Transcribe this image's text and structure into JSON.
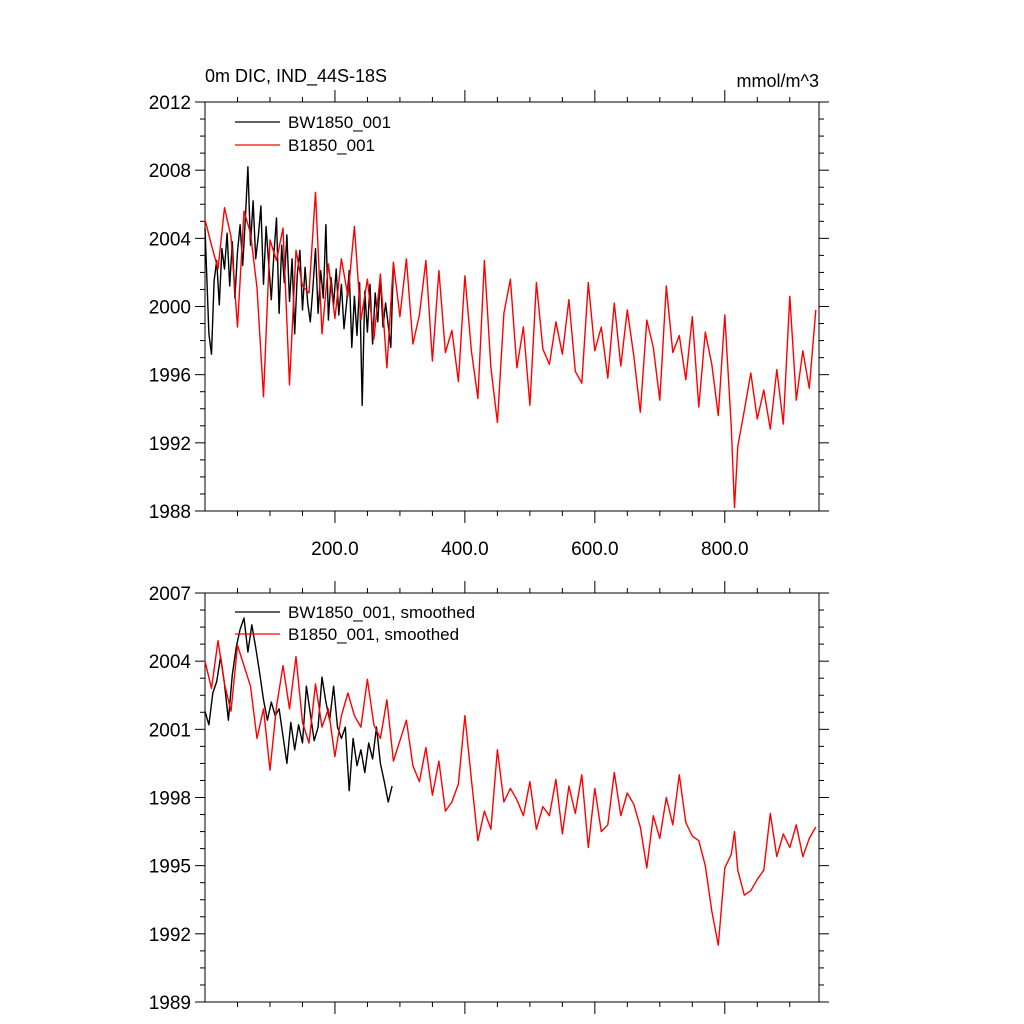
{
  "chart_data": [
    {
      "type": "line",
      "title": "0m DIC, IND_44S-18S",
      "units": "mmol/m^3",
      "xlim": [
        0,
        945
      ],
      "ylim": [
        1988,
        2012
      ],
      "xticks": [
        200,
        400,
        600,
        800
      ],
      "xtick_labels": [
        "200.0",
        "400.0",
        "600.0",
        "800.0"
      ],
      "yticks": [
        1988,
        1992,
        1996,
        2000,
        2004,
        2008,
        2012
      ],
      "ytick_labels": [
        "1988",
        "1992",
        "1996",
        "2000",
        "2004",
        "2008",
        "2012"
      ],
      "legend_position": "top-left",
      "series": [
        {
          "name": "BW1850_001",
          "color": "#000000",
          "x": [
            0,
            6,
            10,
            14,
            18,
            22,
            26,
            30,
            34,
            38,
            42,
            46,
            50,
            54,
            58,
            62,
            66,
            70,
            74,
            78,
            82,
            86,
            90,
            94,
            98,
            102,
            106,
            110,
            114,
            118,
            122,
            126,
            130,
            134,
            138,
            142,
            146,
            150,
            154,
            158,
            162,
            166,
            170,
            174,
            178,
            182,
            186,
            190,
            194,
            198,
            202,
            206,
            210,
            214,
            218,
            222,
            226,
            230,
            234,
            238,
            242,
            246,
            250,
            254,
            258,
            262,
            266,
            270,
            274,
            278,
            282,
            286,
            290
          ],
          "values": [
            2004.6,
            1998.4,
            1997.2,
            2001.5,
            2002.7,
            2000.1,
            2003.4,
            2002.2,
            2004.3,
            2001.2,
            2003.8,
            2000.5,
            2003.2,
            2004.8,
            2002.4,
            2005.1,
            2008.2,
            2003.6,
            2006.2,
            2002.8,
            2004.1,
            2005.9,
            2001.3,
            2004.7,
            2002.5,
            2000.4,
            2003.1,
            2005.2,
            1999.6,
            2003.6,
            2001.4,
            2004.2,
            2000.3,
            2002.8,
            1998.4,
            2001.9,
            2003.3,
            1999.8,
            2002.3,
            2000.2,
            1999.1,
            2001.1,
            2003.4,
            1999.6,
            2002.1,
            2000.5,
            2004.8,
            1999.2,
            2001.7,
            2000.1,
            2002.2,
            1999.5,
            2001.3,
            1998.7,
            2000.2,
            2002.1,
            1997.6,
            2000.6,
            1998.3,
            2001.4,
            1994.2,
            2000.9,
            1998.5,
            2001.3,
            1997.8,
            2000.8,
            1999.1,
            2001.7,
            1998.8,
            2000.2,
            1998.9,
            1997.6,
            2002.4
          ]
        },
        {
          "name": "B1850_001",
          "color": "#ff0000",
          "x": [
            0,
            10,
            20,
            30,
            40,
            50,
            60,
            70,
            80,
            90,
            100,
            110,
            120,
            130,
            140,
            150,
            160,
            170,
            180,
            190,
            200,
            210,
            220,
            230,
            240,
            250,
            260,
            270,
            280,
            290,
            300,
            310,
            320,
            330,
            340,
            350,
            360,
            370,
            380,
            390,
            400,
            410,
            420,
            430,
            440,
            450,
            460,
            470,
            480,
            490,
            500,
            510,
            520,
            530,
            540,
            550,
            560,
            570,
            580,
            590,
            600,
            610,
            620,
            630,
            640,
            650,
            660,
            670,
            680,
            690,
            700,
            710,
            720,
            730,
            740,
            750,
            760,
            770,
            780,
            790,
            800,
            810,
            815,
            820,
            830,
            840,
            850,
            860,
            870,
            880,
            890,
            900,
            910,
            920,
            930,
            940
          ],
          "values": [
            2005.1,
            2003.6,
            2002.2,
            2005.8,
            2004.1,
            1998.8,
            2005.6,
            2004.3,
            2001.1,
            1994.7,
            2003.9,
            2002.7,
            2004.6,
            1995.4,
            2003.3,
            2001.2,
            2000.8,
            2006.7,
            1998.4,
            2002.5,
            1999.3,
            2002.8,
            2000.6,
            2004.7,
            1999.2,
            2001.6,
            1998.1,
            2001.9,
            1996.4,
            2002.6,
            1999.4,
            2002.8,
            1997.8,
            1999.5,
            2002.7,
            1996.8,
            2002.1,
            1997.3,
            1998.6,
            1995.6,
            2001.8,
            1997.4,
            1994.6,
            2002.7,
            1996.4,
            1993.2,
            1999.6,
            2001.6,
            1996.4,
            1998.8,
            1994.2,
            2001.4,
            1997.5,
            1996.6,
            1999.1,
            1997.2,
            2000.4,
            1996.2,
            1995.5,
            2001.4,
            1997.4,
            1998.8,
            1995.8,
            2000.2,
            1996.5,
            1999.8,
            1997.1,
            1993.8,
            1999.2,
            1997.6,
            1994.5,
            2001.2,
            1997.3,
            1998.3,
            1995.7,
            1999.4,
            1994.1,
            1998.5,
            1996.6,
            1993.6,
            1999.5,
            1992.9,
            1988.2,
            1991.8,
            1993.9,
            1996.1,
            1993.4,
            1995.1,
            1992.8,
            1996.3,
            1993.1,
            2000.6,
            1994.5,
            1997.4,
            1995.2,
            1999.8
          ]
        }
      ]
    },
    {
      "type": "line",
      "title": "",
      "xlim": [
        0,
        945
      ],
      "ylim": [
        1989,
        2007
      ],
      "xticks": [
        200,
        400,
        600,
        800
      ],
      "yticks": [
        1989,
        1992,
        1995,
        1998,
        2001,
        2004,
        2007
      ],
      "ytick_labels": [
        "1989",
        "1992",
        "1995",
        "1998",
        "2001",
        "2004",
        "2007"
      ],
      "legend_position": "top-left",
      "series": [
        {
          "name": "BW1850_001, smoothed",
          "color": "#000000",
          "x": [
            0,
            6,
            12,
            18,
            24,
            30,
            36,
            42,
            48,
            54,
            60,
            66,
            72,
            78,
            84,
            90,
            96,
            102,
            108,
            114,
            120,
            126,
            132,
            138,
            144,
            150,
            156,
            162,
            168,
            174,
            180,
            186,
            192,
            198,
            204,
            210,
            216,
            222,
            228,
            234,
            240,
            246,
            252,
            258,
            264,
            270,
            276,
            282,
            288
          ],
          "values": [
            2001.8,
            2001.2,
            2002.6,
            2003.1,
            2004.2,
            2003.0,
            2001.4,
            2003.4,
            2004.6,
            2005.4,
            2005.9,
            2004.4,
            2005.6,
            2004.6,
            2003.5,
            2002.3,
            2001.4,
            2002.2,
            2001.6,
            2001.9,
            2000.7,
            1999.5,
            2001.3,
            2000.1,
            2001.2,
            2000.4,
            2002.9,
            2001.7,
            2000.5,
            2001.1,
            2003.3,
            2002.2,
            2001.4,
            2002.9,
            2001.1,
            2000.6,
            2001.1,
            1998.3,
            2000.6,
            1999.4,
            2000.1,
            1999.1,
            2000.4,
            1999.7,
            2001.1,
            1999.5,
            1998.7,
            1997.8,
            1998.5
          ]
        },
        {
          "name": "B1850_001, smoothed",
          "color": "#ff0000",
          "x": [
            0,
            10,
            20,
            30,
            40,
            50,
            60,
            70,
            80,
            90,
            100,
            110,
            120,
            130,
            140,
            150,
            160,
            170,
            180,
            190,
            200,
            210,
            220,
            230,
            240,
            250,
            260,
            270,
            280,
            290,
            300,
            310,
            320,
            330,
            340,
            350,
            360,
            370,
            380,
            390,
            400,
            410,
            420,
            430,
            440,
            450,
            460,
            470,
            480,
            490,
            500,
            510,
            520,
            530,
            540,
            550,
            560,
            570,
            580,
            590,
            600,
            610,
            620,
            630,
            640,
            650,
            660,
            670,
            680,
            690,
            700,
            710,
            720,
            730,
            740,
            750,
            760,
            770,
            780,
            790,
            800,
            810,
            815,
            820,
            830,
            840,
            850,
            860,
            870,
            880,
            890,
            900,
            910,
            920,
            930,
            940
          ],
          "values": [
            2004.0,
            2002.8,
            2004.9,
            2003.0,
            2001.8,
            2004.7,
            2003.8,
            2002.9,
            2000.6,
            2001.9,
            1999.2,
            2002.0,
            2003.8,
            2001.9,
            2004.2,
            2001.3,
            2000.4,
            2003.0,
            2001.1,
            2001.9,
            1999.8,
            2001.6,
            2002.6,
            2001.6,
            2001.1,
            2003.2,
            2001.2,
            2000.6,
            2002.3,
            1999.6,
            2000.5,
            2001.4,
            1999.4,
            1998.7,
            2000.2,
            1998.1,
            1999.6,
            1997.4,
            1997.8,
            1998.6,
            2001.6,
            1998.8,
            1996.1,
            1997.4,
            1996.6,
            2000.1,
            1997.8,
            1998.4,
            1997.9,
            1997.2,
            1998.7,
            1996.6,
            1997.6,
            1997.2,
            1998.8,
            1996.4,
            1998.5,
            1997.3,
            1999.0,
            1995.8,
            1998.4,
            1996.5,
            1996.8,
            1999.1,
            1997.2,
            1998.2,
            1997.7,
            1996.7,
            1994.9,
            1997.2,
            1996.2,
            1998.0,
            1996.8,
            1999.0,
            1996.9,
            1996.3,
            1996.1,
            1995.0,
            1993.0,
            1991.5,
            1994.9,
            1995.5,
            1996.5,
            1994.8,
            1993.7,
            1993.9,
            1994.4,
            1994.8,
            1997.3,
            1995.4,
            1996.4,
            1995.8,
            1996.8,
            1995.4,
            1996.2,
            1996.7
          ]
        }
      ]
    }
  ]
}
